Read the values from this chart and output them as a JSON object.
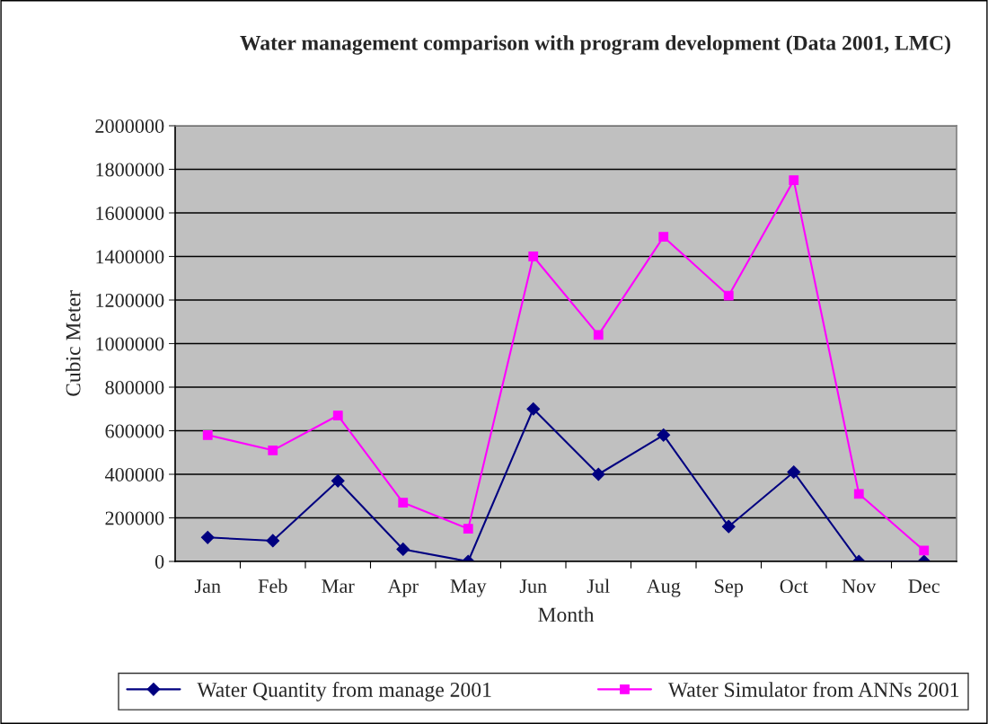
{
  "chart_data": {
    "type": "line",
    "title": "Water management comparison with program development (Data 2001, LMC)",
    "xlabel": "Month",
    "ylabel": "Cubic Meter",
    "categories": [
      "Jan",
      "Feb",
      "Mar",
      "Apr",
      "May",
      "Jun",
      "Jul",
      "Aug",
      "Sep",
      "Oct",
      "Nov",
      "Dec"
    ],
    "series": [
      {
        "name": "Water Quantity from manage 2001",
        "color": "#000080",
        "marker": "diamond",
        "values": [
          110000,
          95000,
          370000,
          56000,
          0,
          700000,
          400000,
          580000,
          160000,
          410000,
          0,
          0
        ]
      },
      {
        "name": "Water Simulator from ANNs 2001",
        "color": "#ff00ff",
        "marker": "square",
        "values": [
          580000,
          510000,
          670000,
          270000,
          150000,
          1400000,
          1040000,
          1490000,
          1220000,
          1750000,
          310000,
          50000
        ]
      }
    ],
    "ylim": [
      0,
      2000000
    ],
    "yticks": [
      0,
      200000,
      400000,
      600000,
      800000,
      1000000,
      1200000,
      1400000,
      1600000,
      1800000,
      2000000
    ],
    "grid": "y",
    "legend": "bottom",
    "line_style": "solid"
  }
}
